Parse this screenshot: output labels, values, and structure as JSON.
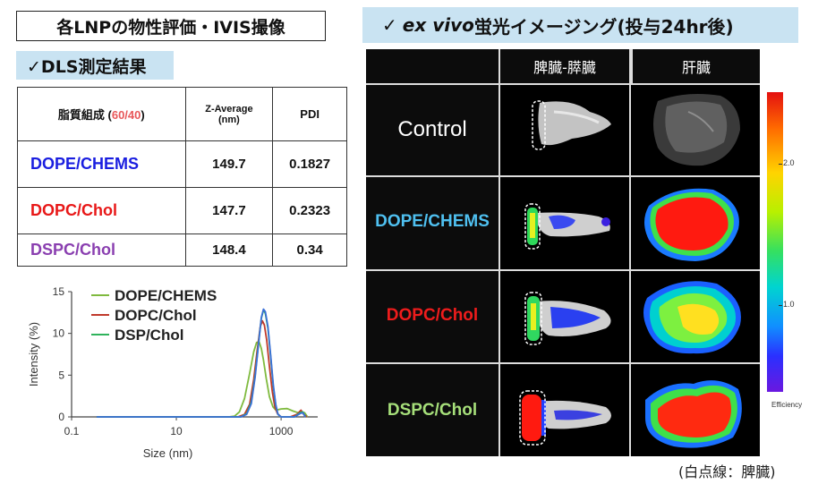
{
  "titles": {
    "main": "各LNPの物性評価・IVIS撮像",
    "ivis_prefix": "✓",
    "ivis_italic": "ex vivo",
    "ivis_rest": " 蛍光イメージング(投与24hr後)",
    "dls": "✓DLS測定結果"
  },
  "dls_table": {
    "header_composition": "脂質組成 (",
    "header_ratio": "60/40",
    "header_close": ")",
    "header_zavg_1": "Z-Average",
    "header_zavg_2": "(nm)",
    "header_pdi": "PDI",
    "rows": [
      {
        "name": "DOPE/CHEMS",
        "color": "#1a1ee0",
        "zavg": "149.7",
        "pdi": "0.1827"
      },
      {
        "name": "DOPC/Chol",
        "color": "#e81818",
        "zavg": "147.7",
        "pdi": "0.2323"
      },
      {
        "name": "DSPC/Chol",
        "color": "#8a3fb0",
        "zavg": "148.4",
        "pdi": "0.34"
      }
    ]
  },
  "ivis": {
    "col_headers": [
      "脾臓-膵臓",
      "肝臓"
    ],
    "row_labels": [
      {
        "text": "Control",
        "color": "#ffffff"
      },
      {
        "text": "DOPE/CHEMS",
        "color": "#4fc0f0"
      },
      {
        "text": "DOPC/Chol",
        "color": "#ee1c1c"
      },
      {
        "text": "DSPC/Chol",
        "color": "#a6df7a"
      }
    ],
    "colorbar_ticks": [
      "2.0",
      "1.0"
    ],
    "colorbar_label": "Efficiency",
    "footnote": "(白点線：脾臓)"
  },
  "chart_data": {
    "type": "line",
    "xlabel": "Size (nm)",
    "ylabel": "Intensity (%)",
    "xscale": "log",
    "xlim": [
      0.1,
      5000
    ],
    "ylim": [
      0,
      15
    ],
    "xticks": [
      "0.1",
      "10",
      "1000"
    ],
    "yticks": [
      "0",
      "5",
      "10",
      "15"
    ],
    "legend_position": "top-left",
    "series": [
      {
        "name": "DOPE/CHEMS",
        "color": "#7fba3e",
        "x": [
          0.3,
          100,
          130,
          160,
          200,
          250,
          300,
          340,
          380,
          420,
          460,
          520,
          600,
          700,
          800,
          1000,
          1300,
          1700,
          2100,
          2500,
          2800,
          3200
        ],
        "y": [
          0,
          0,
          0.1,
          0.6,
          2.2,
          5.2,
          7.8,
          8.9,
          9.0,
          8.2,
          6.8,
          4.6,
          2.4,
          1.2,
          0.8,
          0.95,
          1.0,
          0.7,
          0.5,
          0.6,
          0.5,
          0
        ]
      },
      {
        "name": "DOPC/Chol",
        "color": "#c0392b",
        "x": [
          0.3,
          150,
          200,
          250,
          300,
          350,
          400,
          440,
          480,
          530,
          600,
          680,
          760,
          850,
          1000,
          1500,
          2000,
          2400,
          2700,
          3100
        ],
        "y": [
          0,
          0,
          0.3,
          1.5,
          4.5,
          8.0,
          10.8,
          11.5,
          11.0,
          9.2,
          6.0,
          3.0,
          1.2,
          0.4,
          0,
          0,
          0.3,
          0.8,
          0.3,
          0
        ]
      },
      {
        "name": "DSP/Chol",
        "color": "#2fb35c",
        "x": [
          0.3,
          170,
          220,
          270,
          320,
          370,
          420,
          460,
          500,
          560,
          630,
          710,
          790,
          870,
          1000,
          1800,
          2300,
          2600,
          2900
        ],
        "y": [
          0,
          0,
          0.4,
          1.8,
          5.0,
          8.8,
          11.8,
          12.8,
          12.4,
          10.6,
          7.2,
          3.6,
          1.4,
          0.3,
          0,
          0,
          0.5,
          0.6,
          0
        ]
      },
      {
        "name": "",
        "color": "#3a6fd8",
        "x": [
          0.3,
          170,
          220,
          270,
          320,
          370,
          420,
          460,
          500,
          560,
          630,
          710,
          790,
          870,
          1000,
          1800,
          2300,
          2600,
          2900
        ],
        "y": [
          0,
          0,
          0.3,
          1.6,
          4.8,
          8.6,
          11.9,
          12.9,
          12.6,
          10.8,
          7.4,
          3.8,
          1.5,
          0.3,
          0,
          0,
          0.4,
          0.5,
          0
        ]
      }
    ]
  }
}
